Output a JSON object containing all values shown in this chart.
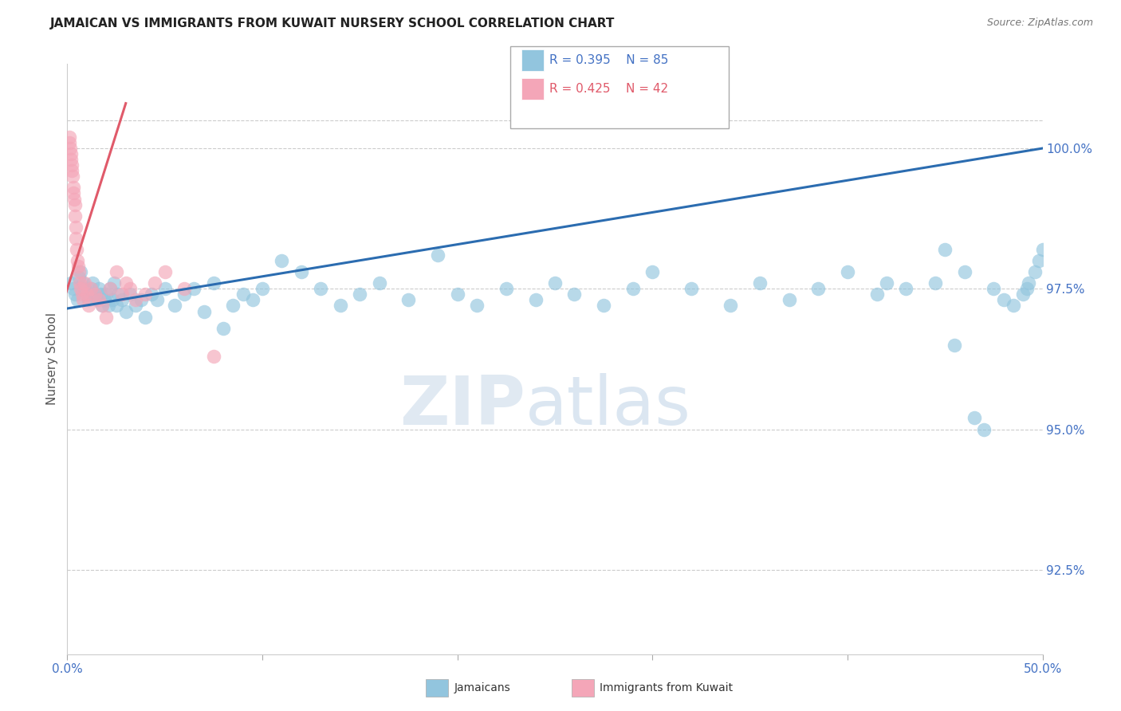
{
  "title": "JAMAICAN VS IMMIGRANTS FROM KUWAIT NURSERY SCHOOL CORRELATION CHART",
  "source": "Source: ZipAtlas.com",
  "ylabel": "Nursery School",
  "ytick_values": [
    92.5,
    95.0,
    97.5,
    100.0
  ],
  "xlim": [
    0.0,
    50.0
  ],
  "ylim": [
    91.0,
    101.5
  ],
  "legend_r_blue": "R = 0.395",
  "legend_n_blue": "N = 85",
  "legend_r_pink": "R = 0.425",
  "legend_n_pink": "N = 42",
  "color_blue": "#92c5de",
  "color_pink": "#f4a6b8",
  "line_color_blue": "#2b6cb0",
  "line_color_pink": "#e05a6a",
  "watermark_zip": "ZIP",
  "watermark_atlas": "atlas",
  "label_blue": "Jamaicans",
  "label_pink": "Immigrants from Kuwait",
  "tick_color": "#4472c4",
  "blue_trend_x0": 0.0,
  "blue_trend_y0": 97.15,
  "blue_trend_x1": 50.0,
  "blue_trend_y1": 100.0,
  "pink_trend_x0": 0.0,
  "pink_trend_y0": 97.5,
  "pink_trend_x1": 3.0,
  "pink_trend_y1": 100.8,
  "blue_x": [
    0.2,
    0.3,
    0.4,
    0.5,
    0.6,
    0.7,
    0.8,
    0.9,
    1.0,
    1.1,
    1.2,
    1.3,
    1.4,
    1.5,
    1.6,
    1.7,
    1.8,
    1.9,
    2.0,
    2.1,
    2.2,
    2.3,
    2.4,
    2.5,
    2.6,
    2.8,
    3.0,
    3.2,
    3.5,
    3.8,
    4.0,
    4.3,
    4.6,
    5.0,
    5.5,
    6.0,
    6.5,
    7.0,
    7.5,
    8.0,
    8.5,
    9.0,
    9.5,
    10.0,
    11.0,
    12.0,
    13.0,
    14.0,
    15.0,
    16.0,
    17.5,
    19.0,
    20.0,
    21.0,
    22.5,
    24.0,
    25.0,
    26.0,
    27.5,
    29.0,
    30.0,
    32.0,
    34.0,
    35.5,
    37.0,
    38.5,
    40.0,
    41.5,
    42.0,
    43.0,
    44.5,
    45.0,
    46.0,
    47.5,
    48.0,
    49.0,
    49.3,
    49.6,
    49.8,
    50.0,
    49.2,
    48.5,
    47.0,
    46.5,
    45.5
  ],
  "blue_y": [
    97.6,
    97.5,
    97.4,
    97.3,
    97.7,
    97.8,
    97.6,
    97.5,
    97.4,
    97.3,
    97.5,
    97.6,
    97.4,
    97.3,
    97.5,
    97.4,
    97.2,
    97.3,
    97.4,
    97.2,
    97.5,
    97.3,
    97.6,
    97.2,
    97.4,
    97.3,
    97.1,
    97.4,
    97.2,
    97.3,
    97.0,
    97.4,
    97.3,
    97.5,
    97.2,
    97.4,
    97.5,
    97.1,
    97.6,
    96.8,
    97.2,
    97.4,
    97.3,
    97.5,
    98.0,
    97.8,
    97.5,
    97.2,
    97.4,
    97.6,
    97.3,
    98.1,
    97.4,
    97.2,
    97.5,
    97.3,
    97.6,
    97.4,
    97.2,
    97.5,
    97.8,
    97.5,
    97.2,
    97.6,
    97.3,
    97.5,
    97.8,
    97.4,
    97.6,
    97.5,
    97.6,
    98.2,
    97.8,
    97.5,
    97.3,
    97.4,
    97.6,
    97.8,
    98.0,
    98.2,
    97.5,
    97.2,
    95.0,
    95.2,
    96.5
  ],
  "pink_x": [
    0.1,
    0.12,
    0.15,
    0.18,
    0.2,
    0.22,
    0.25,
    0.28,
    0.3,
    0.32,
    0.35,
    0.38,
    0.4,
    0.42,
    0.45,
    0.48,
    0.5,
    0.55,
    0.6,
    0.65,
    0.7,
    0.75,
    0.8,
    0.9,
    1.0,
    1.1,
    1.2,
    1.4,
    1.6,
    1.8,
    2.0,
    2.2,
    2.5,
    2.8,
    3.0,
    3.2,
    3.5,
    4.0,
    4.5,
    5.0,
    6.0,
    7.5
  ],
  "pink_y": [
    100.2,
    100.1,
    100.0,
    99.9,
    99.8,
    99.7,
    99.6,
    99.5,
    99.3,
    99.2,
    99.1,
    99.0,
    98.8,
    98.6,
    98.4,
    98.2,
    98.0,
    97.9,
    97.8,
    97.6,
    97.5,
    97.4,
    97.3,
    97.6,
    97.4,
    97.2,
    97.5,
    97.4,
    97.3,
    97.2,
    97.0,
    97.5,
    97.8,
    97.4,
    97.6,
    97.5,
    97.3,
    97.4,
    97.6,
    97.8,
    97.5,
    96.3
  ]
}
